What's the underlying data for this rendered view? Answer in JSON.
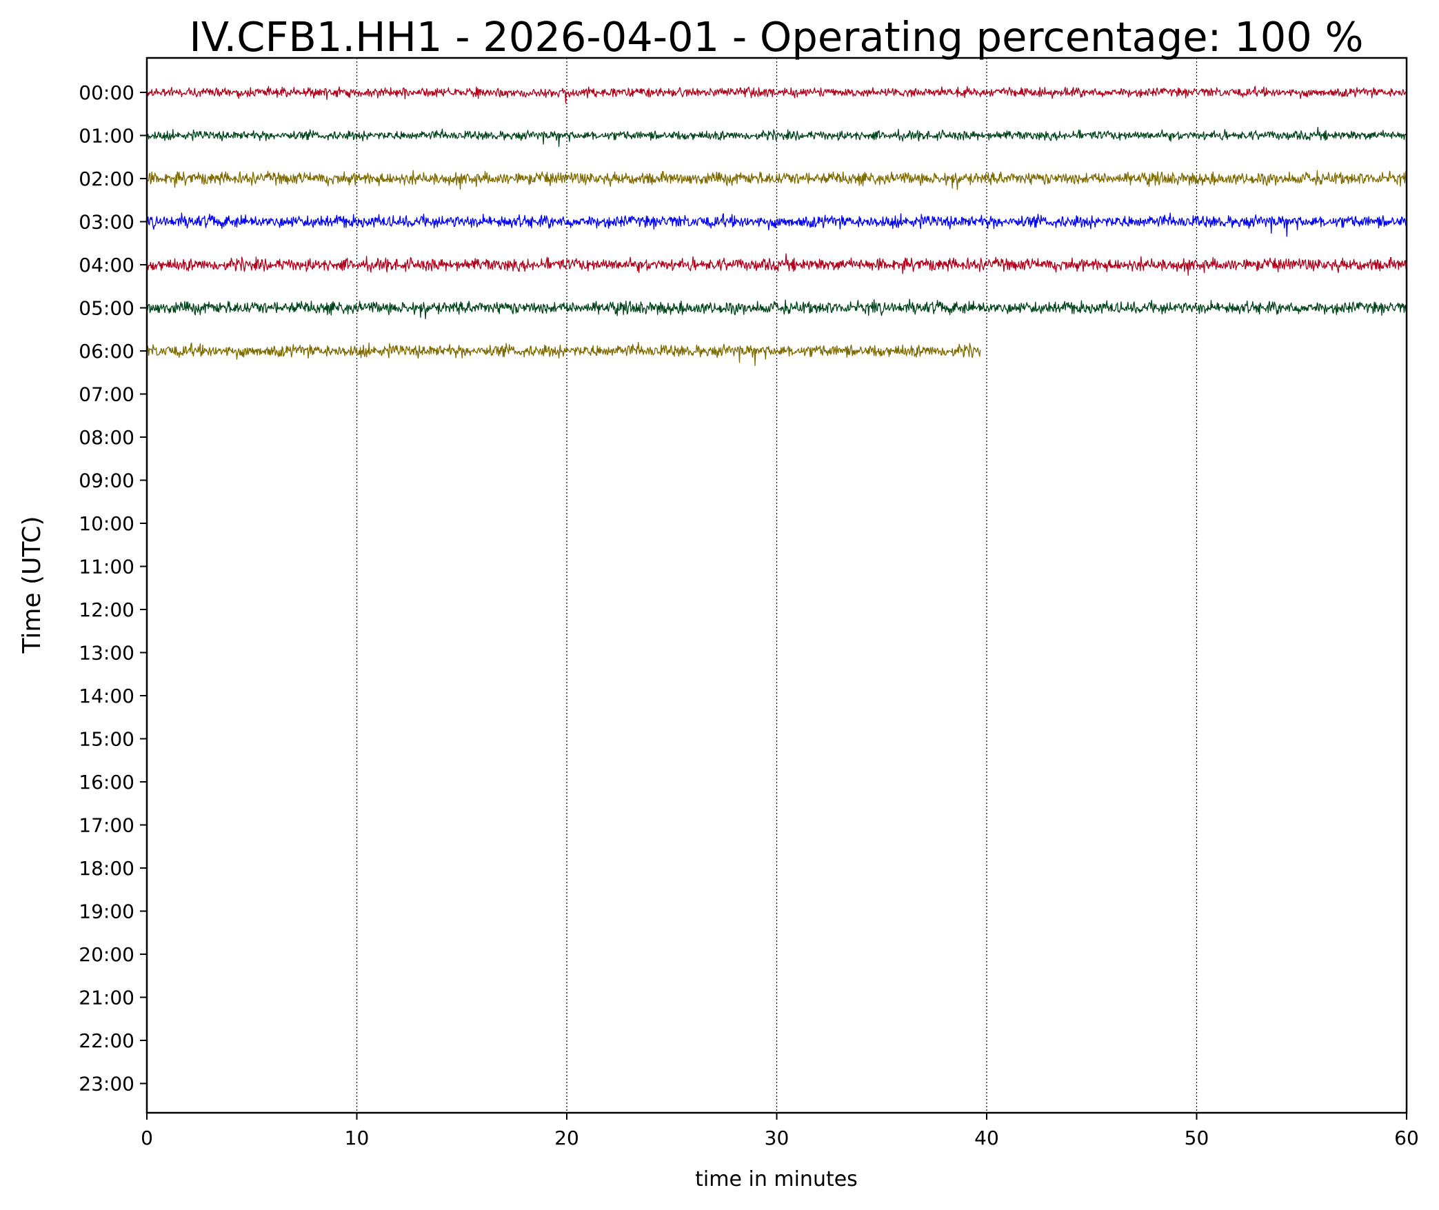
{
  "chart_data": {
    "type": "line",
    "title": "IV.CFB1.HH1 - 2026-04-01 - Operating percentage: 100 %",
    "xlabel": "time in minutes",
    "ylabel": "Time (UTC)",
    "xlim": [
      0,
      60
    ],
    "xticks": [
      0,
      10,
      20,
      30,
      40,
      50,
      60
    ],
    "yticks": [
      "00:00",
      "01:00",
      "02:00",
      "03:00",
      "04:00",
      "05:00",
      "06:00",
      "07:00",
      "08:00",
      "09:00",
      "10:00",
      "11:00",
      "12:00",
      "13:00",
      "14:00",
      "15:00",
      "16:00",
      "17:00",
      "18:00",
      "19:00",
      "20:00",
      "21:00",
      "22:00",
      "23:00"
    ],
    "grid": "vertical dotted at x ticks",
    "series": [
      {
        "row": "00:00",
        "color": "#b0001a",
        "x_start": 0,
        "x_end": 60,
        "amplitude": 0.6
      },
      {
        "row": "01:00",
        "color": "#00441b",
        "x_start": 0,
        "x_end": 60,
        "amplitude": 0.6
      },
      {
        "row": "02:00",
        "color": "#7f6a00",
        "x_start": 0,
        "x_end": 60,
        "amplitude": 0.8
      },
      {
        "row": "03:00",
        "color": "#0000ff",
        "x_start": 0,
        "x_end": 60,
        "amplitude": 0.8
      },
      {
        "row": "04:00",
        "color": "#b0001a",
        "x_start": 0,
        "x_end": 60,
        "amplitude": 0.8
      },
      {
        "row": "05:00",
        "color": "#00441b",
        "x_start": 0,
        "x_end": 60,
        "amplitude": 0.8
      },
      {
        "row": "06:00",
        "color": "#7f6a00",
        "x_start": 0,
        "x_end": 39.7,
        "amplitude": 0.8
      }
    ]
  }
}
